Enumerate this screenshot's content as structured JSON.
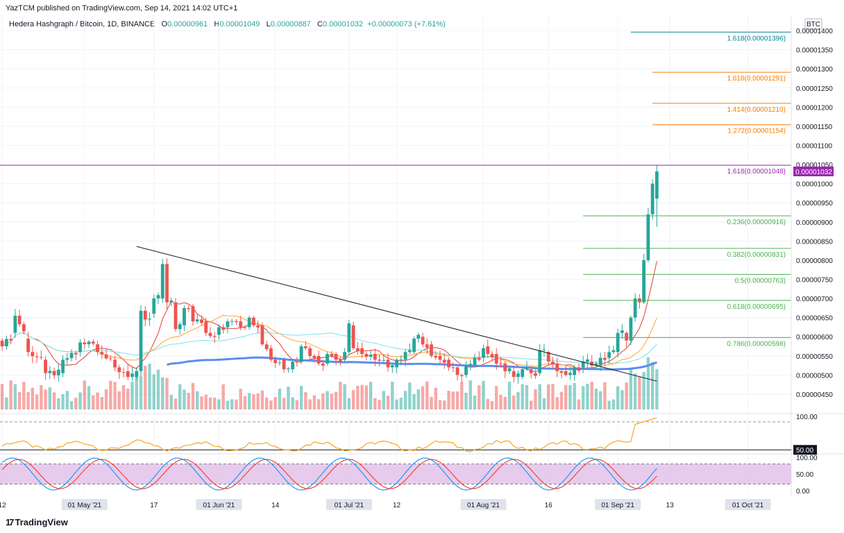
{
  "header": {
    "publish_line": "YazTCM published on TradingView.com, Sep 14, 2021 14:02 UTC+1",
    "symbol": "Hedera Hashgraph / Bitcoin, 1D, BINANCE",
    "o_label": "O",
    "o_value": "0.00000961",
    "h_label": "H",
    "h_value": "0.00001049",
    "l_label": "L",
    "l_value": "0.00000887",
    "c_label": "C",
    "c_value": "0.00001032",
    "change": "+0.00000073 (+7.61%)"
  },
  "footer": {
    "brand": "TradingView"
  },
  "colors": {
    "up": "#26a69a",
    "down": "#ef5350",
    "fib_green": "#4caf50",
    "fib_orange": "#f57c00",
    "fib_teal": "#00838f",
    "resistance": "#9c27b0",
    "sma200": "#5b8def",
    "rsi": "#f5a623",
    "stoch_k": "#2196f3",
    "stoch_d": "#f44336",
    "stoch_band": "#e1bee7"
  },
  "chart_data": {
    "type": "candlestick",
    "currency": "BTC",
    "y_ticks": [
      "0.00001400",
      "0.00001350",
      "0.00001300",
      "0.00001250",
      "0.00001200",
      "0.00001150",
      "0.00001100",
      "0.00001050",
      "0.00001000",
      "0.00000950",
      "0.00000900",
      "0.00000850",
      "0.00000800",
      "0.00000750",
      "0.00000700",
      "0.00000650",
      "0.00000600",
      "0.00000550",
      "0.00000500",
      "0.00000450"
    ],
    "y_tick_values": [
      1400,
      1350,
      1300,
      1250,
      1200,
      1150,
      1100,
      1050,
      1000,
      950,
      900,
      850,
      800,
      750,
      700,
      650,
      600,
      550,
      500,
      450
    ],
    "ylim": [
      410,
      1440
    ],
    "x_ticks": [
      {
        "label": "12",
        "day": 0
      },
      {
        "label": "01 May '21",
        "day": 19,
        "boxed": true
      },
      {
        "label": "17",
        "day": 35
      },
      {
        "label": "01 Jun '21",
        "day": 50,
        "boxed": true
      },
      {
        "label": "14",
        "day": 63
      },
      {
        "label": "01 Jul '21",
        "day": 80,
        "boxed": true
      },
      {
        "label": "12",
        "day": 91
      },
      {
        "label": "01 Aug '21",
        "day": 111,
        "boxed": true
      },
      {
        "label": "16",
        "day": 126
      },
      {
        "label": "01 Sep '21",
        "day": 142,
        "boxed": true
      },
      {
        "label": "13",
        "day": 154
      },
      {
        "label": "01 Oct '21",
        "day": 172,
        "boxed": true
      }
    ],
    "xlim": [
      -0.5,
      182
    ],
    "current_price_label": "0.00001032",
    "fib_levels": [
      {
        "label": "1.618(0.00001396)",
        "price": 1396,
        "color": "#00838f",
        "from_day": 145
      },
      {
        "label": "1.618(0.00001291)",
        "price": 1291,
        "color": "#f57c00",
        "from_day": 150
      },
      {
        "label": "1.414(0.00001210)",
        "price": 1210,
        "color": "#f57c00",
        "from_day": 150
      },
      {
        "label": "1.272(0.00001154)",
        "price": 1154,
        "color": "#f57c00",
        "from_day": 150
      },
      {
        "label": "1.618(0.00001048)",
        "price": 1048,
        "color": "#9c27b0",
        "from_day": -1
      },
      {
        "label": "0.236(0.00000916)",
        "price": 916,
        "color": "#4caf50",
        "from_day": 134
      },
      {
        "label": "0.382(0.00000831)",
        "price": 831,
        "color": "#4caf50",
        "from_day": 134
      },
      {
        "label": "0.5(0.00000763)",
        "price": 763,
        "color": "#4caf50",
        "from_day": 134
      },
      {
        "label": "0.618(0.00000695)",
        "price": 695,
        "color": "#4caf50",
        "from_day": 134
      },
      {
        "label": "0.786(0.00000598)",
        "price": 598,
        "color": "#4caf50",
        "from_day": 134
      }
    ],
    "trendline": {
      "x1": 31,
      "y1": 836,
      "x2": 151,
      "y2": 484
    },
    "candle_keys": [
      {
        "day": 0,
        "o": 590,
        "c": 575
      },
      {
        "day": 3,
        "o": 610,
        "c": 655
      },
      {
        "day": 6,
        "o": 595,
        "c": 560
      },
      {
        "day": 10,
        "o": 540,
        "c": 505
      },
      {
        "day": 14,
        "o": 505,
        "c": 540
      },
      {
        "day": 18,
        "o": 560,
        "c": 585
      },
      {
        "day": 22,
        "o": 580,
        "c": 560
      },
      {
        "day": 26,
        "o": 540,
        "c": 520
      },
      {
        "day": 29,
        "o": 510,
        "c": 495
      },
      {
        "day": 31,
        "o": 495,
        "c": 510
      },
      {
        "day": 32,
        "o": 510,
        "c": 668
      },
      {
        "day": 33,
        "o": 668,
        "c": 645
      },
      {
        "day": 35,
        "o": 660,
        "c": 700
      },
      {
        "day": 37,
        "o": 700,
        "c": 790
      },
      {
        "day": 38,
        "o": 790,
        "c": 690
      },
      {
        "day": 40,
        "o": 690,
        "c": 620
      },
      {
        "day": 42,
        "o": 630,
        "c": 675
      },
      {
        "day": 44,
        "o": 680,
        "c": 640
      },
      {
        "day": 47,
        "o": 640,
        "c": 610
      },
      {
        "day": 50,
        "o": 605,
        "c": 625
      },
      {
        "day": 52,
        "o": 625,
        "c": 640
      },
      {
        "day": 55,
        "o": 640,
        "c": 625
      },
      {
        "day": 57,
        "o": 625,
        "c": 650
      },
      {
        "day": 58,
        "o": 650,
        "c": 630
      },
      {
        "day": 60,
        "o": 630,
        "c": 580
      },
      {
        "day": 62,
        "o": 570,
        "c": 540
      },
      {
        "day": 65,
        "o": 540,
        "c": 515
      },
      {
        "day": 67,
        "o": 515,
        "c": 535
      },
      {
        "day": 69,
        "o": 535,
        "c": 575
      },
      {
        "day": 71,
        "o": 570,
        "c": 550
      },
      {
        "day": 73,
        "o": 550,
        "c": 530
      },
      {
        "day": 75,
        "o": 530,
        "c": 555
      },
      {
        "day": 77,
        "o": 555,
        "c": 540
      },
      {
        "day": 79,
        "o": 540,
        "c": 560
      },
      {
        "day": 80,
        "o": 560,
        "c": 635
      },
      {
        "day": 81,
        "o": 630,
        "c": 570
      },
      {
        "day": 83,
        "o": 570,
        "c": 555
      },
      {
        "day": 86,
        "o": 555,
        "c": 540
      },
      {
        "day": 89,
        "o": 540,
        "c": 520
      },
      {
        "day": 91,
        "o": 520,
        "c": 540
      },
      {
        "day": 93,
        "o": 540,
        "c": 560
      },
      {
        "day": 95,
        "o": 560,
        "c": 595
      },
      {
        "day": 97,
        "o": 600,
        "c": 580
      },
      {
        "day": 99,
        "o": 580,
        "c": 550
      },
      {
        "day": 101,
        "o": 550,
        "c": 540
      },
      {
        "day": 103,
        "o": 540,
        "c": 520
      },
      {
        "day": 105,
        "o": 520,
        "c": 500
      },
      {
        "day": 107,
        "o": 500,
        "c": 525
      },
      {
        "day": 109,
        "o": 525,
        "c": 545
      },
      {
        "day": 111,
        "o": 545,
        "c": 570
      },
      {
        "day": 112,
        "o": 575,
        "c": 555
      },
      {
        "day": 114,
        "o": 555,
        "c": 530
      },
      {
        "day": 116,
        "o": 530,
        "c": 510
      },
      {
        "day": 118,
        "o": 510,
        "c": 495
      },
      {
        "day": 120,
        "o": 495,
        "c": 515
      },
      {
        "day": 122,
        "o": 515,
        "c": 505
      },
      {
        "day": 124,
        "o": 505,
        "c": 565
      },
      {
        "day": 126,
        "o": 560,
        "c": 535
      },
      {
        "day": 128,
        "o": 530,
        "c": 510
      },
      {
        "day": 130,
        "o": 510,
        "c": 500
      },
      {
        "day": 132,
        "o": 500,
        "c": 520
      },
      {
        "day": 134,
        "o": 520,
        "c": 535
      },
      {
        "day": 136,
        "o": 535,
        "c": 525
      },
      {
        "day": 138,
        "o": 525,
        "c": 545
      },
      {
        "day": 140,
        "o": 545,
        "c": 560
      },
      {
        "day": 142,
        "o": 560,
        "c": 610
      },
      {
        "day": 144,
        "o": 610,
        "c": 590
      },
      {
        "day": 145,
        "o": 590,
        "c": 650
      },
      {
        "day": 146,
        "o": 650,
        "c": 700
      },
      {
        "day": 147,
        "o": 700,
        "c": 690
      },
      {
        "day": 148,
        "o": 690,
        "c": 800
      },
      {
        "day": 149,
        "o": 800,
        "c": 920
      },
      {
        "day": 150,
        "o": 920,
        "c": 1000
      },
      {
        "day": 151,
        "o": 961,
        "c": 1032,
        "h": 1049,
        "l": 887
      }
    ],
    "rsi": {
      "labels": [
        "100.00",
        "50.00"
      ],
      "levels": [
        100,
        50
      ],
      "ylim": [
        44,
        104
      ]
    },
    "stoch_rsi": {
      "labels": [
        "100.00",
        "50.00",
        "0.00"
      ],
      "levels": [
        100,
        50,
        0
      ],
      "band": [
        20,
        80
      ],
      "ylim": [
        -10,
        110
      ]
    }
  }
}
